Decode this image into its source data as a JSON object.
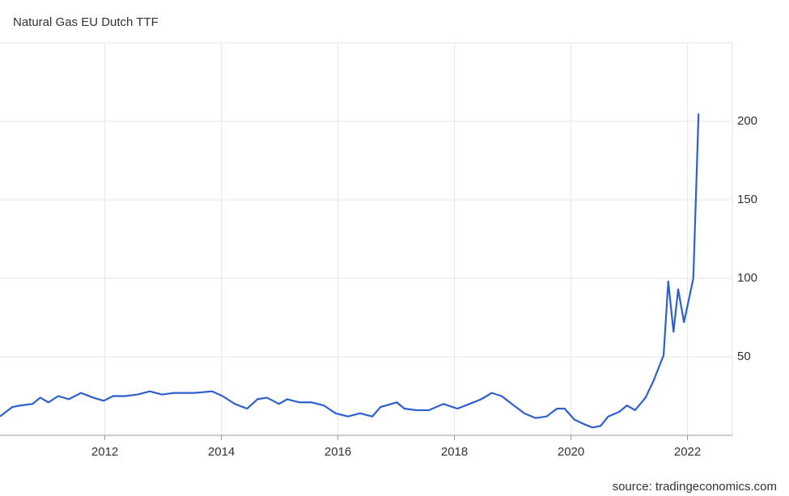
{
  "chart_data": {
    "type": "line",
    "title": "Natural Gas EU Dutch TTF",
    "source": "source: tradingeconomics.com",
    "x": [
      2010.2,
      2010.41,
      2010.55,
      2010.76,
      2010.89,
      2011.03,
      2011.2,
      2011.38,
      2011.59,
      2011.8,
      2011.98,
      2012.14,
      2012.35,
      2012.56,
      2012.77,
      2012.98,
      2013.19,
      2013.53,
      2013.84,
      2014.02,
      2014.23,
      2014.44,
      2014.62,
      2014.78,
      2014.99,
      2015.13,
      2015.34,
      2015.55,
      2015.76,
      2015.96,
      2016.17,
      2016.38,
      2016.59,
      2016.73,
      2017.01,
      2017.14,
      2017.35,
      2017.56,
      2017.81,
      2018.05,
      2018.26,
      2018.46,
      2018.64,
      2018.81,
      2019.02,
      2019.2,
      2019.39,
      2019.58,
      2019.76,
      2019.89,
      2020.06,
      2020.23,
      2020.37,
      2020.51,
      2020.64,
      2020.83,
      2020.96,
      2021.1,
      2021.28,
      2021.42,
      2021.59,
      2021.67,
      2021.76,
      2021.84,
      2021.94,
      2022.1,
      2022.19
    ],
    "series": [
      {
        "name": "Natural Gas EU Dutch TTF",
        "color": "#2e5fd0",
        "values": [
          12,
          18,
          19,
          20,
          24,
          21,
          25,
          23,
          27,
          24,
          22,
          25,
          25,
          26,
          28,
          26,
          27,
          27,
          28,
          25,
          20,
          17,
          23,
          24,
          20,
          23,
          21,
          21,
          19,
          14,
          12,
          14,
          12,
          18,
          21,
          17,
          16,
          16,
          20,
          17,
          20,
          23,
          27,
          25,
          19,
          14,
          11,
          12,
          17,
          17,
          10,
          7,
          5,
          6,
          12,
          15,
          19,
          16,
          24,
          35,
          51,
          98,
          66,
          93,
          72,
          100,
          205
        ]
      }
    ],
    "xlim": [
      2010.2,
      2022.77
    ],
    "xticks": [
      2012,
      2014,
      2016,
      2018,
      2020,
      2022
    ],
    "ylim": [
      0,
      250
    ],
    "yticks": [
      50,
      100,
      150,
      200
    ],
    "grid": true
  }
}
